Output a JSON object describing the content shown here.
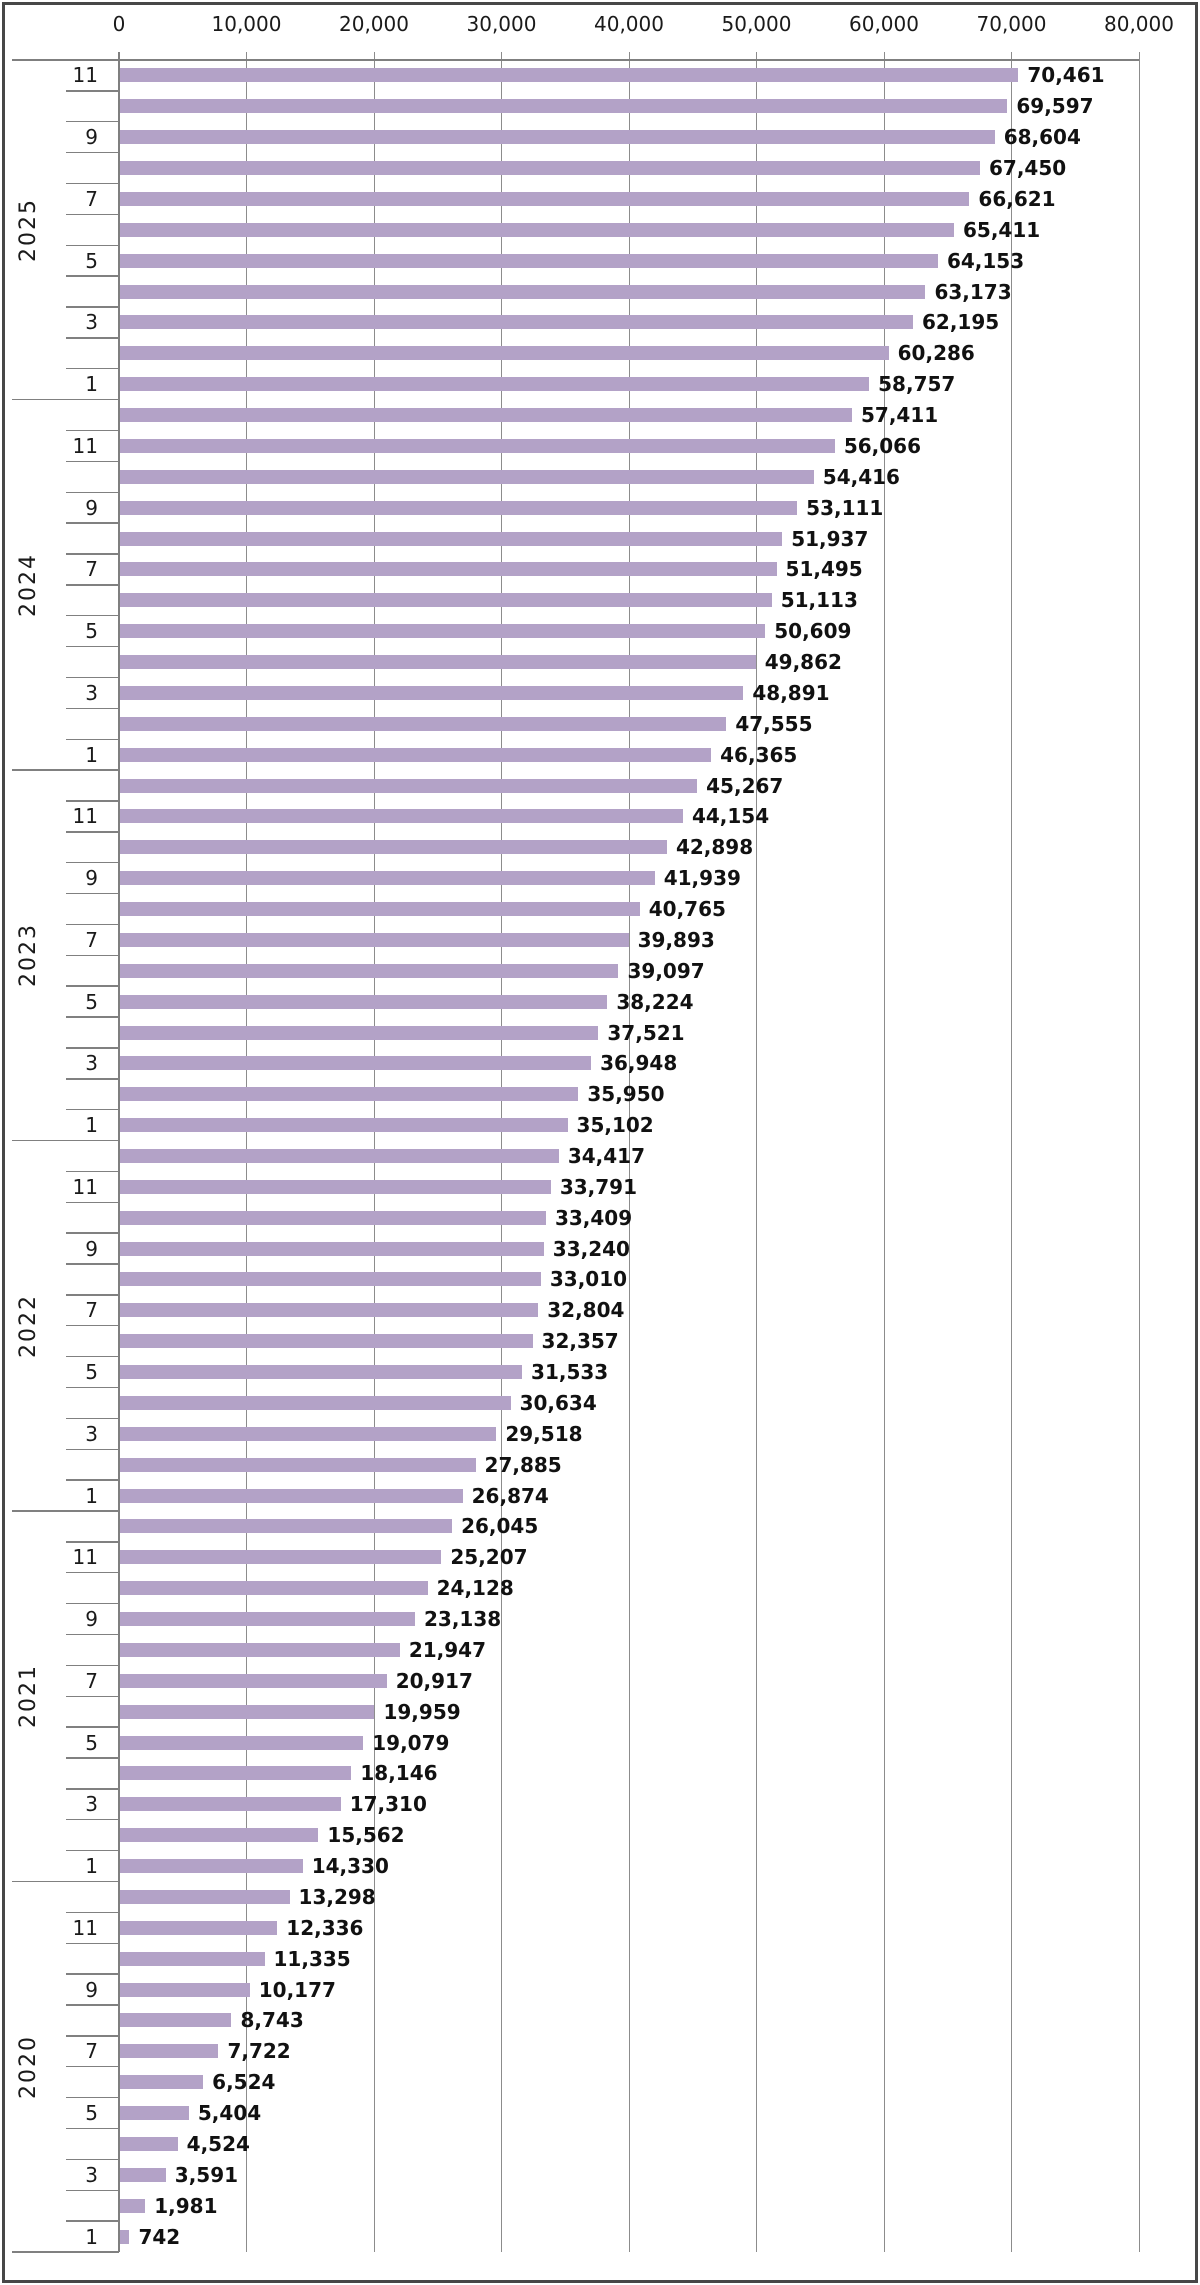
{
  "chart_data": {
    "type": "bar",
    "orientation": "horizontal",
    "title": "",
    "value_axis": {
      "position": "top",
      "min": 0,
      "max": 80000,
      "tick_interval": 10000,
      "tick_labels": [
        "0",
        "10,000",
        "20,000",
        "30,000",
        "40,000",
        "50,000",
        "60,000",
        "70,000",
        "80,000"
      ]
    },
    "category_axis": {
      "position": "left",
      "group_labels": [
        "2025",
        "2024",
        "2023",
        "2022",
        "2021",
        "2020"
      ],
      "month_labels_shown": [
        "11",
        "9",
        "7",
        "5",
        "3",
        "1"
      ]
    },
    "style": {
      "bar_color": "#B3A2C7",
      "gridline_color": "#8C8C8C",
      "axis_color": "#7F7F7F",
      "text_color": "#1A1A1A",
      "frame_color": "#474747",
      "grid": true,
      "legend": false
    },
    "groups": [
      {
        "year": "2025",
        "months": [
          {
            "month": 11,
            "value": 70461
          },
          {
            "month": 10,
            "value": 69597
          },
          {
            "month": 9,
            "value": 68604
          },
          {
            "month": 8,
            "value": 67450
          },
          {
            "month": 7,
            "value": 66621
          },
          {
            "month": 6,
            "value": 65411
          },
          {
            "month": 5,
            "value": 64153
          },
          {
            "month": 4,
            "value": 63173
          },
          {
            "month": 3,
            "value": 62195
          },
          {
            "month": 2,
            "value": 60286
          },
          {
            "month": 1,
            "value": 58757
          }
        ]
      },
      {
        "year": "2024",
        "months": [
          {
            "month": 12,
            "value": 57411
          },
          {
            "month": 11,
            "value": 56066
          },
          {
            "month": 10,
            "value": 54416
          },
          {
            "month": 9,
            "value": 53111
          },
          {
            "month": 8,
            "value": 51937
          },
          {
            "month": 7,
            "value": 51495
          },
          {
            "month": 6,
            "value": 51113
          },
          {
            "month": 5,
            "value": 50609
          },
          {
            "month": 4,
            "value": 49862
          },
          {
            "month": 3,
            "value": 48891
          },
          {
            "month": 2,
            "value": 47555
          },
          {
            "month": 1,
            "value": 46365
          }
        ]
      },
      {
        "year": "2023",
        "months": [
          {
            "month": 12,
            "value": 45267
          },
          {
            "month": 11,
            "value": 44154
          },
          {
            "month": 10,
            "value": 42898
          },
          {
            "month": 9,
            "value": 41939
          },
          {
            "month": 8,
            "value": 40765
          },
          {
            "month": 7,
            "value": 39893
          },
          {
            "month": 6,
            "value": 39097
          },
          {
            "month": 5,
            "value": 38224
          },
          {
            "month": 4,
            "value": 37521
          },
          {
            "month": 3,
            "value": 36948
          },
          {
            "month": 2,
            "value": 35950
          },
          {
            "month": 1,
            "value": 35102
          }
        ]
      },
      {
        "year": "2022",
        "months": [
          {
            "month": 12,
            "value": 34417
          },
          {
            "month": 11,
            "value": 33791
          },
          {
            "month": 10,
            "value": 33409
          },
          {
            "month": 9,
            "value": 33240
          },
          {
            "month": 8,
            "value": 33010
          },
          {
            "month": 7,
            "value": 32804
          },
          {
            "month": 6,
            "value": 32357
          },
          {
            "month": 5,
            "value": 31533
          },
          {
            "month": 4,
            "value": 30634
          },
          {
            "month": 3,
            "value": 29518
          },
          {
            "month": 2,
            "value": 27885
          },
          {
            "month": 1,
            "value": 26874
          }
        ]
      },
      {
        "year": "2021",
        "months": [
          {
            "month": 12,
            "value": 26045
          },
          {
            "month": 11,
            "value": 25207
          },
          {
            "month": 10,
            "value": 24128
          },
          {
            "month": 9,
            "value": 23138
          },
          {
            "month": 8,
            "value": 21947
          },
          {
            "month": 7,
            "value": 20917
          },
          {
            "month": 6,
            "value": 19959
          },
          {
            "month": 5,
            "value": 19079
          },
          {
            "month": 4,
            "value": 18146
          },
          {
            "month": 3,
            "value": 17310
          },
          {
            "month": 2,
            "value": 15562
          },
          {
            "month": 1,
            "value": 14330
          }
        ]
      },
      {
        "year": "2020",
        "months": [
          {
            "month": 12,
            "value": 13298
          },
          {
            "month": 11,
            "value": 12336
          },
          {
            "month": 10,
            "value": 11335
          },
          {
            "month": 9,
            "value": 10177
          },
          {
            "month": 8,
            "value": 8743
          },
          {
            "month": 7,
            "value": 7722
          },
          {
            "month": 6,
            "value": 6524
          },
          {
            "month": 5,
            "value": 5404
          },
          {
            "month": 4,
            "value": 4524
          },
          {
            "month": 3,
            "value": 3591
          },
          {
            "month": 2,
            "value": 1981
          },
          {
            "month": 1,
            "value": 742
          }
        ]
      }
    ]
  }
}
